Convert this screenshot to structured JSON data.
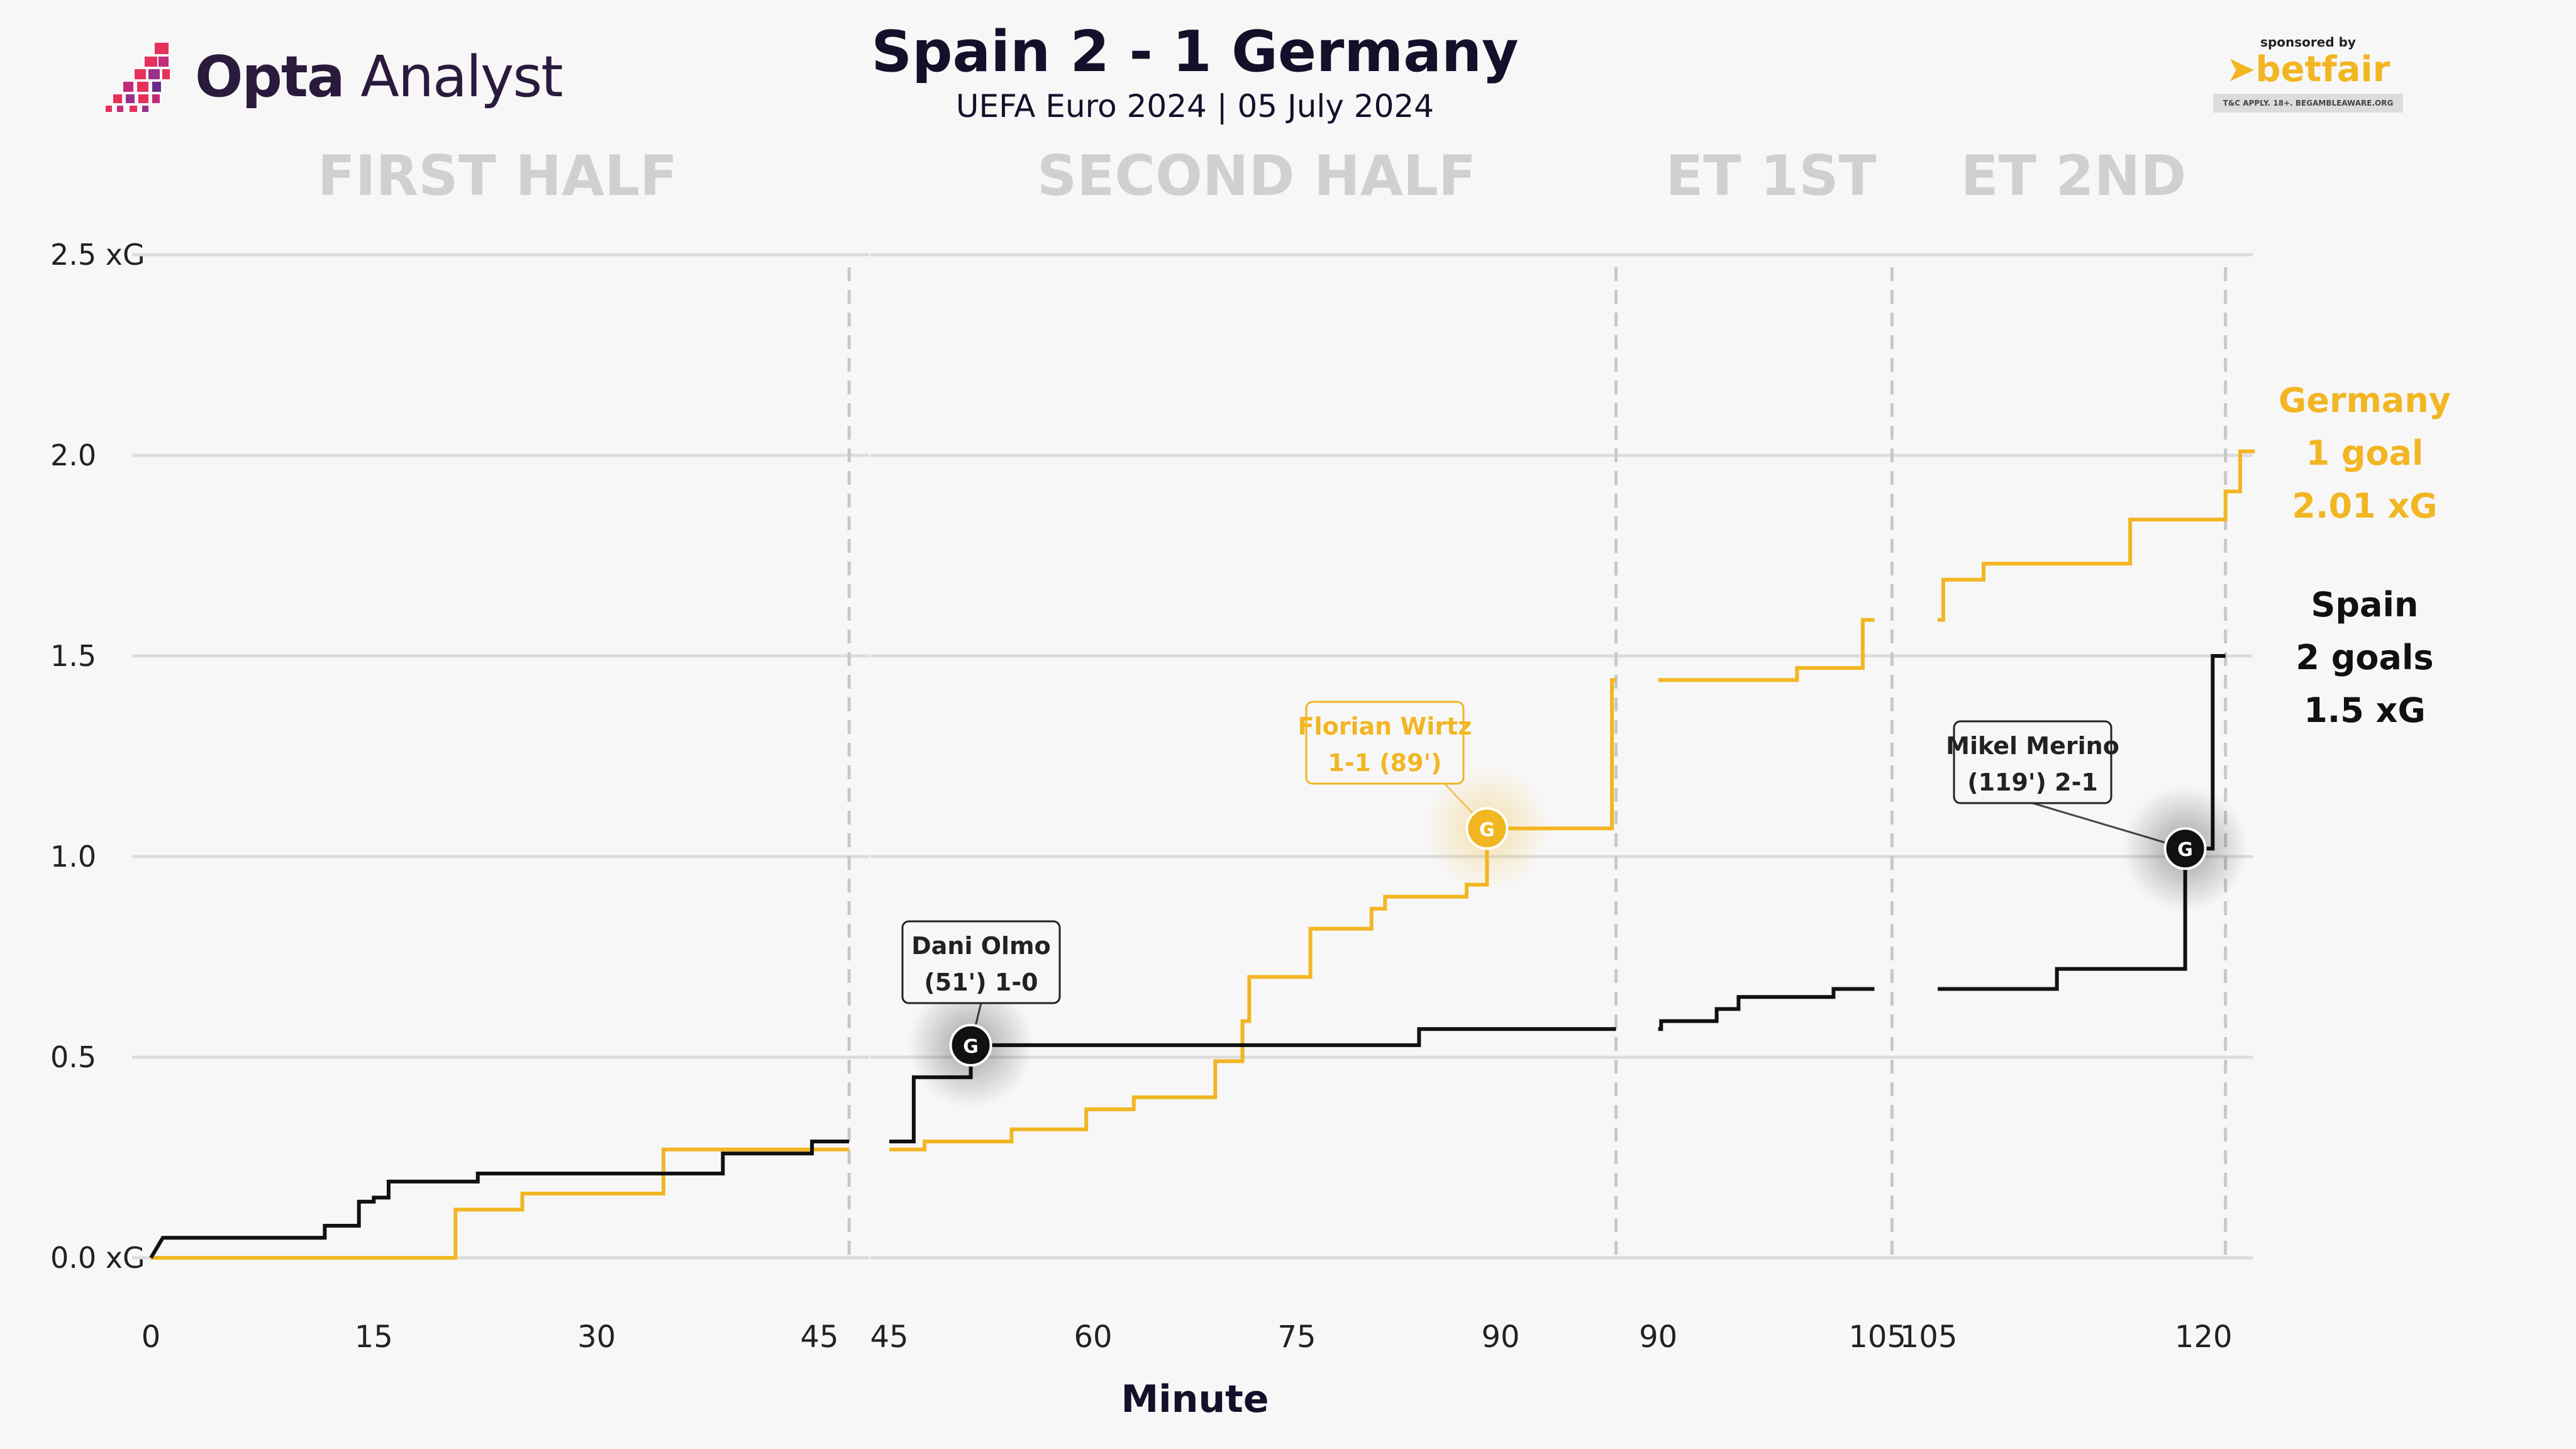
{
  "header": {
    "title": "Spain 2 - 1 Germany",
    "subtitle": "UEFA Euro 2024 | 05 July 2024"
  },
  "brand": {
    "name_bold": "Opta",
    "name_regular": " Analyst"
  },
  "sponsor": {
    "label": "sponsored by",
    "name": "betfair",
    "note": "T&C APPLY. 18+. BEGAMBLEAWARE.ORG"
  },
  "colors": {
    "germany": "#f2b623",
    "spain": "#111111",
    "grid": "#dcdcdc",
    "period_title": "#d0d0d0"
  },
  "summary": {
    "germany": [
      "Germany",
      "1 goal",
      "2.01 xG"
    ],
    "spain": [
      "Spain",
      "2 goals",
      "1.5 xG"
    ]
  },
  "chart_data": {
    "type": "line",
    "step": true,
    "xlabel": "Minute",
    "ylabel": "",
    "ylim": [
      0,
      2.5
    ],
    "yticks": [
      {
        "v": 0,
        "label": "0.0 xG"
      },
      {
        "v": 0.5,
        "label": "0.5"
      },
      {
        "v": 1.0,
        "label": "1.0"
      },
      {
        "v": 1.5,
        "label": "1.5"
      },
      {
        "v": 2.0,
        "label": "2.0"
      },
      {
        "v": 2.5,
        "label": "2.5 xG"
      }
    ],
    "grid": true,
    "periods": [
      {
        "title": "FIRST HALF",
        "xmin": 0,
        "xmax": 47.5,
        "end": 47,
        "ticks": [
          "0",
          "15",
          "30",
          "45"
        ],
        "tickvals": [
          0,
          15,
          30,
          45
        ],
        "spain": [
          [
            0,
            0
          ],
          [
            0.8,
            0.05
          ],
          [
            11.7,
            0.05
          ],
          [
            11.7,
            0.08
          ],
          [
            14,
            0.08
          ],
          [
            14,
            0.14
          ],
          [
            15,
            0.14
          ],
          [
            15,
            0.15
          ],
          [
            16,
            0.15
          ],
          [
            16,
            0.19
          ],
          [
            22,
            0.19
          ],
          [
            22,
            0.21
          ],
          [
            38.5,
            0.21
          ],
          [
            38.5,
            0.26
          ],
          [
            44.5,
            0.26
          ],
          [
            44.5,
            0.29
          ],
          [
            47,
            0.29
          ]
        ],
        "germany": [
          [
            0,
            0
          ],
          [
            20.5,
            0
          ],
          [
            20.5,
            0.12
          ],
          [
            25,
            0.12
          ],
          [
            25,
            0.16
          ],
          [
            34.5,
            0.16
          ],
          [
            34.5,
            0.27
          ],
          [
            47,
            0.27
          ]
        ]
      },
      {
        "title": "SECOND HALF",
        "xmin": 45,
        "xmax": 100,
        "end": 98.5,
        "ticks": [
          "45",
          "60",
          "75",
          "90"
        ],
        "tickvals": [
          45,
          60,
          75,
          90
        ],
        "spain": [
          [
            45,
            0.29
          ],
          [
            46.8,
            0.29
          ],
          [
            46.8,
            0.45
          ],
          [
            51,
            0.45
          ],
          [
            51,
            0.53
          ],
          [
            84,
            0.53
          ],
          [
            84,
            0.57
          ],
          [
            98.5,
            0.57
          ]
        ],
        "germany": [
          [
            45,
            0.27
          ],
          [
            47.6,
            0.27
          ],
          [
            47.6,
            0.29
          ],
          [
            54,
            0.29
          ],
          [
            54,
            0.32
          ],
          [
            59.5,
            0.32
          ],
          [
            59.5,
            0.37
          ],
          [
            63,
            0.37
          ],
          [
            63,
            0.4
          ],
          [
            69,
            0.4
          ],
          [
            69,
            0.49
          ],
          [
            71,
            0.49
          ],
          [
            71,
            0.59
          ],
          [
            71.5,
            0.59
          ],
          [
            71.5,
            0.7
          ],
          [
            76,
            0.7
          ],
          [
            76,
            0.82
          ],
          [
            80.5,
            0.82
          ],
          [
            80.5,
            0.87
          ],
          [
            81.5,
            0.87
          ],
          [
            81.5,
            0.9
          ],
          [
            87.5,
            0.9
          ],
          [
            87.5,
            0.93
          ],
          [
            89,
            0.93
          ],
          [
            89,
            1.07
          ],
          [
            98.2,
            1.07
          ],
          [
            98.2,
            1.44
          ],
          [
            98.5,
            1.44
          ]
        ]
      },
      {
        "title": "ET 1ST",
        "xmin": 89.8,
        "xmax": 106.5,
        "end": 106,
        "ticks": [
          "90",
          "105"
        ],
        "tickvals": [
          90,
          105
        ],
        "spain": [
          [
            90,
            0.57
          ],
          [
            90.2,
            0.57
          ],
          [
            90.2,
            0.59
          ],
          [
            94,
            0.59
          ],
          [
            94,
            0.62
          ],
          [
            95.5,
            0.62
          ],
          [
            95.5,
            0.65
          ],
          [
            102,
            0.65
          ],
          [
            102,
            0.67
          ],
          [
            104.8,
            0.67
          ]
        ],
        "germany": [
          [
            90,
            1.44
          ],
          [
            99.5,
            1.44
          ],
          [
            99.5,
            1.47
          ],
          [
            104,
            1.47
          ],
          [
            104,
            1.59
          ],
          [
            104.8,
            1.59
          ]
        ]
      },
      {
        "title": "ET 2ND",
        "xmin": 104.5,
        "xmax": 122,
        "end": 121.2,
        "ticks": [
          "105",
          "120"
        ],
        "tickvals": [
          105,
          120
        ],
        "spain": [
          [
            105.5,
            0.67
          ],
          [
            112,
            0.67
          ],
          [
            112,
            0.72
          ],
          [
            119,
            0.72
          ],
          [
            119,
            1.02
          ],
          [
            120.5,
            1.02
          ],
          [
            120.5,
            1.5
          ],
          [
            121.2,
            1.5
          ]
        ],
        "germany": [
          [
            105.5,
            1.59
          ],
          [
            105.8,
            1.59
          ],
          [
            105.8,
            1.69
          ],
          [
            108,
            1.69
          ],
          [
            108,
            1.73
          ],
          [
            116,
            1.73
          ],
          [
            116,
            1.84
          ],
          [
            121.2,
            1.84
          ],
          [
            121.2,
            1.91
          ],
          [
            122,
            1.91
          ],
          [
            122,
            2.01
          ],
          [
            122.8,
            2.01
          ]
        ]
      }
    ],
    "goals": [
      {
        "team": "spain",
        "period": 1,
        "x": 51,
        "y": 0.53,
        "marker": "G",
        "label": [
          "Dani Olmo",
          "(51') 1-0"
        ],
        "lx": 1560,
        "ly": 1530
      },
      {
        "team": "germany",
        "period": 1,
        "x": 89,
        "y": 1.07,
        "marker": "G",
        "label": [
          "Florian Wirtz",
          "1-1 (89')"
        ],
        "lx": 2202,
        "ly": 1181
      },
      {
        "team": "spain",
        "period": 3,
        "x": 119,
        "y": 1.02,
        "marker": "G",
        "label": [
          "Mikel Merino",
          "(119') 2-1"
        ],
        "lx": 3232,
        "ly": 1212
      }
    ]
  }
}
